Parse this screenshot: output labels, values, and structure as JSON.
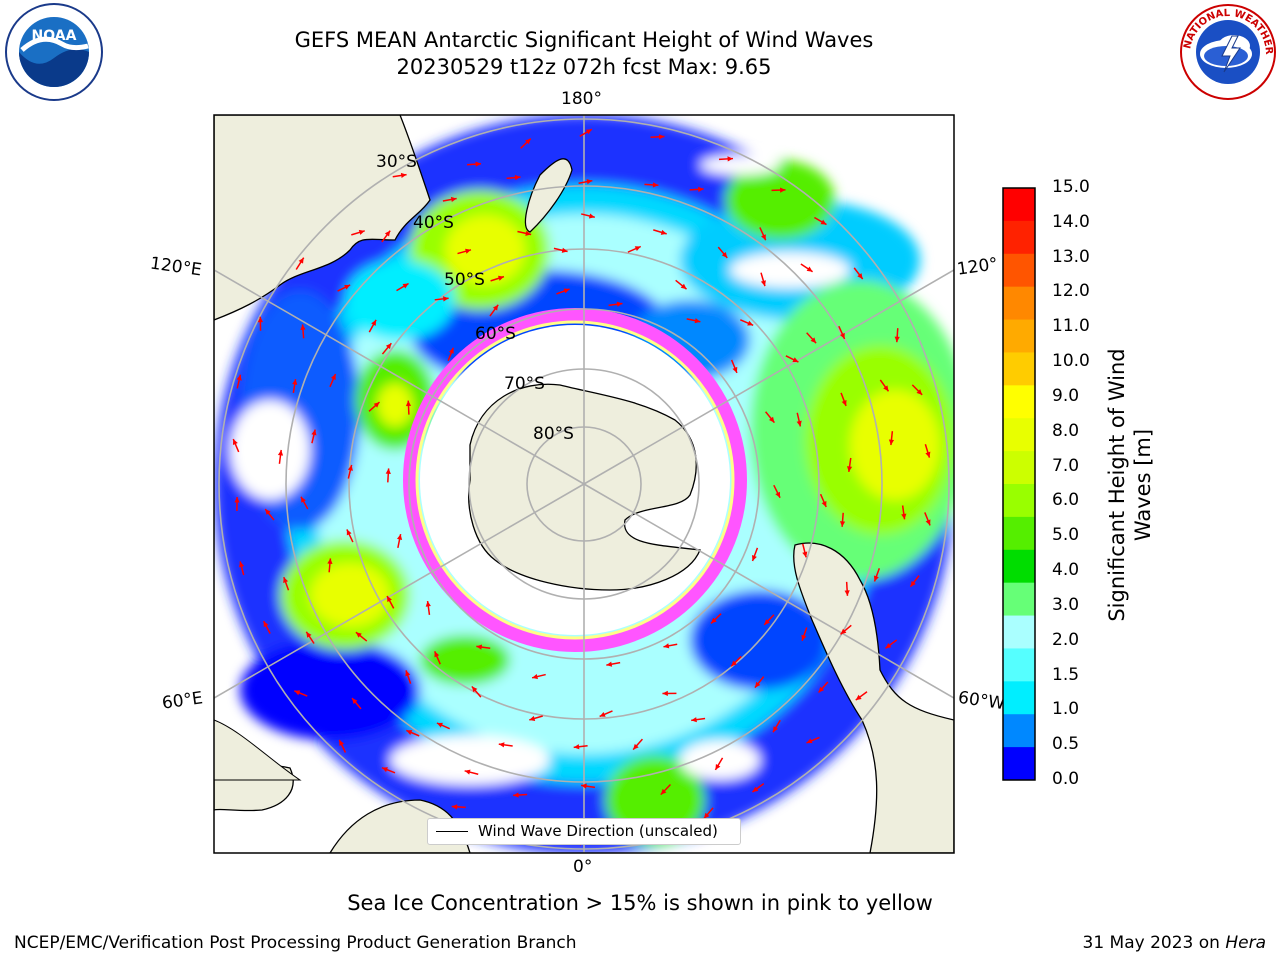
{
  "title": {
    "line1": "GEFS MEAN Antarctic Significant Height of Wind Waves",
    "line2": "20230529 t12z 072h fcst   Max: 9.65"
  },
  "map": {
    "projection": "south-polar-stereographic",
    "lon_labels": {
      "top": "180°",
      "bottom": "0°",
      "left_upper": "120°E",
      "left_lower": "60°E",
      "right_upper": "120°",
      "right_lower": "60°W"
    },
    "lat_labels": [
      "30°S",
      "40°S",
      "50°S",
      "60°S",
      "70°S",
      "80°S"
    ],
    "legend": "Wind Wave Direction (unscaled)",
    "colors": {
      "land": "#eeeedd",
      "ice_low": "#ff55ff",
      "ice_high": "#ffff44",
      "arrow": "#ff0000",
      "grid": "#b0b0b0"
    }
  },
  "colorbar": {
    "label": "Significant Height of Wind Waves [m]",
    "ticks": [
      "15.0",
      "14.0",
      "13.0",
      "12.0",
      "11.0",
      "10.0",
      "9.0",
      "8.0",
      "7.0",
      "6.0",
      "5.0",
      "4.0",
      "3.0",
      "2.0",
      "1.5",
      "1.0",
      "0.5",
      "0.0"
    ],
    "colors_top_to_bottom": [
      "#ff0000",
      "#ff2200",
      "#ff5500",
      "#ff8800",
      "#ffaa00",
      "#ffcc00",
      "#ffff00",
      "#e8ff00",
      "#ccff00",
      "#99ff00",
      "#55ee00",
      "#00dd00",
      "#66ff77",
      "#aaffff",
      "#55ffff",
      "#00eeff",
      "#0088ff",
      "#0000ff"
    ]
  },
  "caption": "Sea Ice Concentration > 15% is shown in pink to yellow",
  "footer": {
    "left": "NCEP/EMC/Verification Post Processing Product Generation Branch",
    "right_prefix": "31 May 2023 on ",
    "right_host": "Hera"
  },
  "logos": {
    "noaa": "NOAA",
    "nws": "NATIONAL WEATHER SERVICE"
  }
}
